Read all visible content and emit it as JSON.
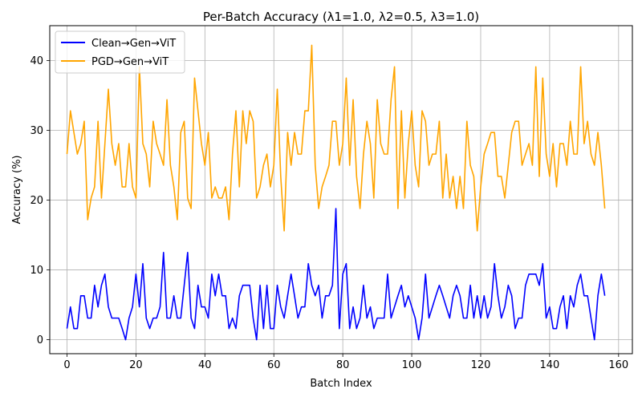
{
  "chart_data": {
    "type": "line",
    "title": "Per-Batch Accuracy (λ1=1.0, λ2=0.5, λ3=1.0)",
    "xlabel": "Batch Index",
    "ylabel": "Accuracy (%)",
    "xlim": [
      -5,
      164
    ],
    "ylim": [
      -2,
      45
    ],
    "xticks": [
      0,
      20,
      40,
      60,
      80,
      100,
      120,
      140,
      160
    ],
    "yticks": [
      0,
      10,
      20,
      30,
      40
    ],
    "grid": true,
    "legend_position": "top-left",
    "series": [
      {
        "name": "Clean→Gen→ViT",
        "color": "#0000ff",
        "values": [
          1.6,
          4.7,
          1.6,
          1.6,
          6.3,
          6.3,
          3.1,
          3.1,
          7.8,
          4.7,
          7.8,
          9.4,
          4.7,
          3.1,
          3.1,
          3.1,
          1.6,
          0.0,
          3.1,
          4.7,
          9.4,
          4.7,
          10.9,
          3.1,
          1.6,
          3.1,
          3.1,
          4.7,
          12.5,
          3.1,
          3.1,
          6.3,
          3.1,
          3.1,
          7.8,
          12.5,
          3.1,
          1.6,
          7.8,
          4.7,
          4.7,
          3.1,
          9.4,
          6.3,
          9.4,
          6.3,
          6.3,
          1.6,
          3.1,
          1.6,
          6.3,
          7.8,
          7.8,
          7.8,
          3.1,
          0.0,
          7.8,
          1.6,
          7.8,
          1.6,
          1.6,
          7.8,
          4.7,
          3.1,
          6.3,
          9.4,
          6.3,
          3.1,
          4.7,
          4.7,
          10.9,
          7.8,
          6.3,
          7.8,
          3.1,
          6.3,
          6.3,
          7.8,
          18.8,
          1.6,
          9.4,
          10.9,
          1.6,
          4.7,
          1.6,
          3.1,
          7.8,
          3.1,
          4.7,
          1.6,
          3.1,
          3.1,
          3.1,
          9.4,
          3.1,
          4.7,
          6.3,
          7.8,
          4.7,
          6.3,
          4.7,
          3.1,
          0.0,
          3.1,
          9.4,
          3.1,
          4.7,
          6.3,
          7.8,
          6.3,
          4.7,
          3.1,
          6.3,
          7.8,
          6.3,
          3.1,
          3.1,
          7.8,
          3.1,
          6.3,
          3.1,
          6.3,
          3.1,
          4.7,
          10.9,
          6.3,
          3.1,
          4.7,
          7.8,
          6.3,
          1.6,
          3.1,
          3.1,
          7.8,
          9.4,
          9.4,
          9.4,
          7.8,
          10.9,
          3.1,
          4.7,
          1.6,
          1.6,
          4.7,
          6.3,
          1.6,
          6.3,
          4.7,
          7.8,
          9.4,
          6.3,
          6.3,
          3.1,
          0.0,
          6.3,
          9.4,
          6.3
        ]
      },
      {
        "name": "PGD→Gen→ViT",
        "color": "#ffa500",
        "values": [
          26.6,
          32.8,
          29.7,
          26.6,
          28.1,
          31.3,
          17.2,
          20.3,
          21.9,
          31.3,
          20.3,
          28.1,
          35.9,
          28.1,
          25.0,
          28.1,
          21.9,
          21.9,
          28.1,
          21.9,
          20.3,
          39.1,
          28.1,
          26.6,
          21.9,
          31.3,
          28.1,
          26.6,
          25.0,
          34.4,
          25.0,
          21.9,
          17.2,
          29.7,
          31.3,
          20.3,
          18.8,
          37.5,
          32.8,
          28.1,
          25.0,
          29.7,
          20.3,
          21.9,
          20.3,
          20.3,
          21.9,
          17.2,
          26.6,
          32.8,
          21.9,
          32.8,
          28.1,
          32.8,
          31.3,
          20.3,
          21.9,
          25.0,
          26.6,
          21.9,
          25.0,
          35.9,
          23.4,
          15.6,
          29.7,
          25.0,
          29.7,
          26.6,
          26.6,
          32.8,
          32.8,
          42.2,
          25.0,
          18.8,
          21.9,
          23.4,
          25.0,
          31.3,
          31.3,
          25.0,
          28.1,
          37.5,
          25.0,
          34.4,
          23.4,
          18.8,
          26.6,
          31.3,
          28.1,
          20.3,
          34.4,
          28.1,
          26.6,
          26.6,
          34.4,
          39.1,
          18.8,
          32.8,
          20.3,
          28.1,
          32.8,
          25.0,
          21.9,
          32.8,
          31.3,
          25.0,
          26.6,
          26.6,
          31.3,
          20.3,
          26.6,
          20.3,
          23.4,
          18.8,
          23.4,
          18.8,
          31.3,
          25.0,
          23.4,
          15.6,
          21.9,
          26.6,
          28.1,
          29.7,
          29.7,
          23.4,
          23.4,
          20.3,
          25.0,
          29.7,
          31.3,
          31.3,
          25.0,
          26.6,
          28.1,
          25.0,
          39.1,
          23.4,
          37.5,
          26.6,
          23.4,
          28.1,
          21.9,
          28.1,
          28.1,
          25.0,
          31.3,
          26.6,
          26.6,
          39.1,
          28.1,
          31.3,
          26.6,
          25.0,
          29.7,
          25.0,
          18.8
        ]
      }
    ]
  }
}
